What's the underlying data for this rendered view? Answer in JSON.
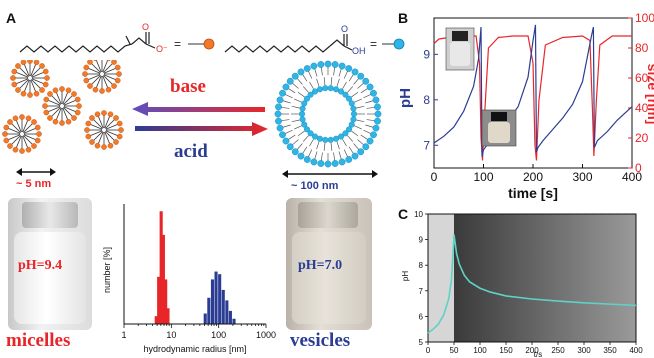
{
  "panels": {
    "a": {
      "letter": "A",
      "equals": "=",
      "base_label": "base",
      "acid_label": "acid",
      "micelle_size": "~ 5 nm",
      "vesicle_size": "~ 100 nm",
      "micelle_vial_ph": "pH=9.4",
      "vesicle_vial_ph": "pH=7.0",
      "micelles_label": "micelles",
      "vesicles_label": "vesicles",
      "carboxylate_charge": "O⁻",
      "acid_oh": "OH",
      "oxygen": "O"
    },
    "b": {
      "letter": "B"
    },
    "c": {
      "letter": "C"
    }
  },
  "colors": {
    "red": "#e8262a",
    "blue": "#2b3d93",
    "orange_head": "#f07a2a",
    "cyan_head": "#2fb4e6",
    "teal_line": "#5fd1c6"
  },
  "chart_data": [
    {
      "id": "A-histogram",
      "type": "bar",
      "xlabel": "hydrodynamic radius [nm]",
      "ylabel": "number [%]",
      "x_scale": "log",
      "xlim": [
        1,
        1000
      ],
      "xticks": [
        "1",
        "10",
        "100",
        "1000"
      ],
      "series": [
        {
          "color": "#e8262a",
          "x": [
            4.8,
            5.4,
            6.1,
            6.8,
            7.6,
            8.5
          ],
          "values": [
            3,
            18,
            43,
            34,
            17,
            6
          ]
        },
        {
          "color": "#2b3d93",
          "x": [
            52,
            62,
            74,
            88,
            105,
            125,
            149,
            177,
            211
          ],
          "values": [
            4,
            10,
            17,
            20,
            19,
            13,
            9,
            5,
            2
          ]
        }
      ]
    },
    {
      "id": "B",
      "type": "line",
      "xlabel": "time [s]",
      "ylabel_left": "pH",
      "ylabel_right": "size [nm]",
      "xlim": [
        0,
        400
      ],
      "xticks": [
        "0",
        "100",
        "200",
        "300",
        "400"
      ],
      "ylim_left": [
        6.5,
        9.8
      ],
      "yticks_left": [
        "7",
        "8",
        "9"
      ],
      "ylim_right": [
        0,
        100
      ],
      "yticks_right": [
        "0",
        "20",
        "40",
        "60",
        "80",
        "100"
      ],
      "series": [
        {
          "axis": "left",
          "color": "#2b3d93",
          "x": [
            0,
            20,
            40,
            60,
            80,
            90,
            95,
            97,
            100,
            110,
            130,
            150,
            170,
            190,
            200,
            205,
            207,
            210,
            220,
            240,
            260,
            280,
            300,
            318,
            322,
            324,
            330,
            350,
            370,
            390,
            400
          ],
          "y": [
            7.05,
            7.2,
            7.4,
            7.75,
            8.3,
            8.9,
            9.6,
            6.75,
            6.9,
            7.05,
            7.3,
            7.55,
            7.85,
            8.5,
            9.3,
            9.65,
            6.85,
            6.95,
            7.1,
            7.35,
            7.6,
            7.9,
            8.4,
            9.4,
            9.6,
            6.95,
            7.1,
            7.3,
            7.55,
            7.75,
            7.85
          ]
        },
        {
          "axis": "right",
          "color": "#e8262a",
          "x": [
            0,
            10,
            30,
            60,
            85,
            92,
            95,
            98,
            103,
            110,
            130,
            160,
            190,
            200,
            204,
            207,
            212,
            225,
            260,
            300,
            315,
            320,
            323,
            328,
            335,
            360,
            400
          ],
          "y": [
            83,
            86,
            87,
            88,
            88,
            70,
            20,
            5,
            40,
            80,
            87,
            88,
            88,
            70,
            15,
            5,
            45,
            82,
            87,
            88,
            85,
            40,
            8,
            45,
            82,
            88,
            88
          ]
        }
      ]
    },
    {
      "id": "C",
      "type": "line",
      "xlabel": "t/s",
      "ylabel": "pH",
      "xlim": [
        0,
        400
      ],
      "xticks": [
        "0",
        "50",
        "100",
        "150",
        "200",
        "250",
        "300",
        "350",
        "400"
      ],
      "ylim": [
        5,
        10
      ],
      "yticks": [
        "5",
        "6",
        "7",
        "8",
        "9",
        "10"
      ],
      "series": [
        {
          "color": "#5fd1c6",
          "x": [
            0,
            10,
            20,
            30,
            40,
            45,
            48,
            50,
            55,
            60,
            70,
            80,
            100,
            120,
            150,
            200,
            250,
            300,
            350,
            400
          ],
          "y": [
            5.35,
            5.5,
            5.7,
            6.05,
            6.7,
            7.4,
            8.4,
            9.2,
            8.45,
            8.05,
            7.6,
            7.35,
            7.1,
            6.95,
            6.8,
            6.68,
            6.6,
            6.53,
            6.48,
            6.43
          ]
        }
      ]
    }
  ]
}
